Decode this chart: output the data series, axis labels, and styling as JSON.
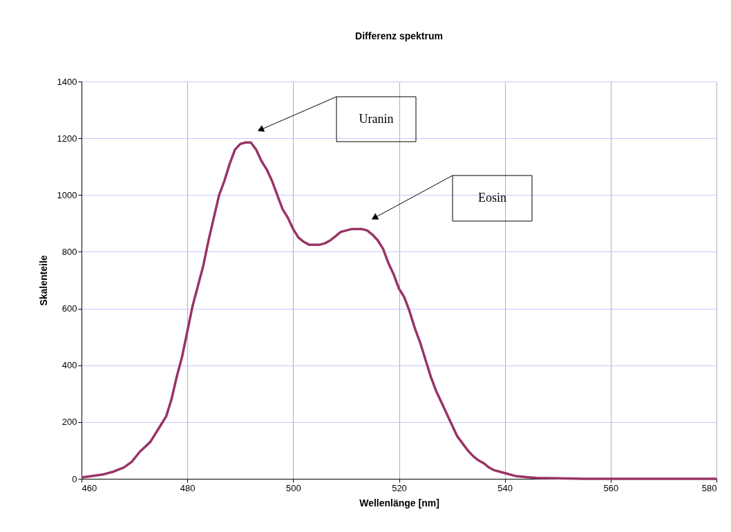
{
  "chart_data": {
    "type": "line",
    "title": "Differenz spektrum",
    "xlabel": "Wellenlänge [nm]",
    "ylabel": "Skalenteile",
    "x": [
      460,
      462,
      464,
      466,
      468,
      469.5,
      471,
      473,
      475,
      476,
      477,
      478,
      479,
      480,
      481,
      482,
      483,
      484,
      485,
      486,
      487,
      488,
      489,
      490,
      491,
      492,
      493,
      494,
      495,
      496,
      497,
      498,
      499,
      500,
      501,
      502,
      503,
      504,
      505,
      506,
      507,
      508,
      509,
      510,
      511,
      512,
      513,
      514,
      515,
      516,
      517,
      518,
      519,
      520,
      521,
      522,
      523,
      524,
      525,
      526,
      527,
      528,
      529,
      530,
      531,
      532,
      533,
      534,
      535,
      536,
      537,
      538,
      540,
      542,
      544,
      546,
      550,
      555,
      560,
      570,
      580
    ],
    "series": [
      {
        "color": "#993366",
        "values": [
          5,
          10,
          15,
          25,
          40,
          60,
          95,
          130,
          190,
          220,
          280,
          360,
          430,
          520,
          610,
          680,
          750,
          840,
          920,
          1000,
          1050,
          1110,
          1160,
          1180,
          1185,
          1185,
          1160,
          1120,
          1090,
          1050,
          1000,
          950,
          920,
          880,
          850,
          835,
          825,
          825,
          825,
          830,
          840,
          855,
          870,
          875,
          880,
          880,
          880,
          875,
          860,
          840,
          810,
          760,
          720,
          670,
          640,
          590,
          530,
          480,
          420,
          360,
          310,
          270,
          230,
          190,
          150,
          125,
          100,
          80,
          65,
          55,
          40,
          30,
          20,
          10,
          6,
          3,
          2,
          0,
          0,
          0,
          0
        ]
      }
    ],
    "xlim": [
      460,
      580
    ],
    "xticks": [
      460,
      480,
      500,
      520,
      540,
      560,
      580
    ],
    "ylim": [
      0,
      1400
    ],
    "yticks": [
      0,
      200,
      400,
      600,
      800,
      1000,
      1200,
      1400
    ],
    "grid": true,
    "legend": false,
    "marker": "none",
    "line_style": "solid",
    "annotations": [
      "Uranin",
      "Eosin"
    ]
  }
}
